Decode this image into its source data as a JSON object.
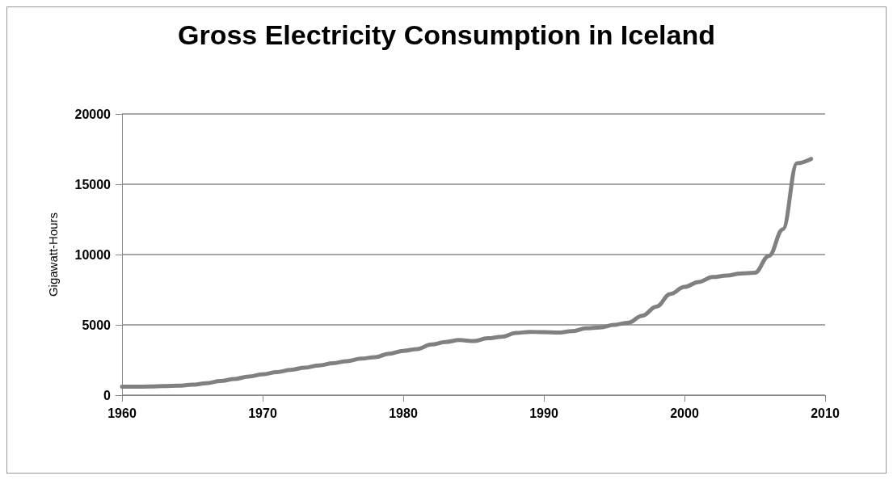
{
  "chart_data": {
    "type": "line",
    "title": "Gross Electricity Consumption in Iceland",
    "ylabel": "Gigawatt-Hours",
    "x": [
      1960,
      1961,
      1962,
      1963,
      1964,
      1965,
      1966,
      1967,
      1968,
      1969,
      1970,
      1971,
      1972,
      1973,
      1974,
      1975,
      1976,
      1977,
      1978,
      1979,
      1980,
      1981,
      1982,
      1983,
      1984,
      1985,
      1986,
      1987,
      1988,
      1989,
      1990,
      1991,
      1992,
      1993,
      1994,
      1995,
      1996,
      1997,
      1998,
      1999,
      2000,
      2001,
      2002,
      2003,
      2004,
      2005,
      2006,
      2007,
      2008,
      2009
    ],
    "series": [
      {
        "color": "#808080",
        "values": [
          600,
          600,
          620,
          640,
          680,
          740,
          850,
          1000,
          1150,
          1320,
          1480,
          1640,
          1800,
          1960,
          2110,
          2270,
          2420,
          2600,
          2700,
          2950,
          3150,
          3280,
          3600,
          3780,
          3920,
          3850,
          4050,
          4150,
          4420,
          4500,
          4480,
          4450,
          4550,
          4750,
          4820,
          5000,
          5150,
          5650,
          6300,
          7200,
          7700,
          8050,
          8400,
          8500,
          8650,
          8700,
          9900,
          11800,
          16500,
          16800
        ]
      }
    ],
    "xlim": [
      1960,
      2010
    ],
    "xticks": [
      1960,
      1970,
      1980,
      1990,
      2000,
      2010
    ],
    "ylim": [
      0,
      20000
    ],
    "yticks": [
      0,
      5000,
      10000,
      15000,
      20000
    ],
    "grid": "y",
    "marker": "none",
    "line_style": "solid"
  }
}
